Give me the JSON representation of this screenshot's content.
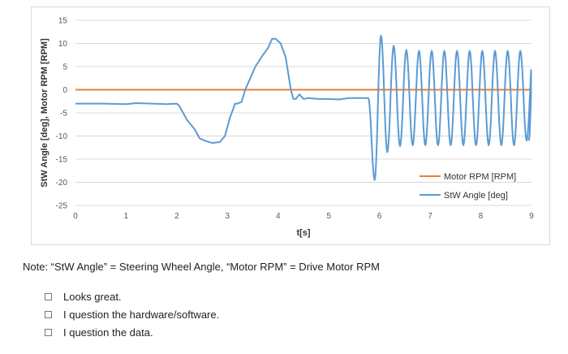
{
  "chart_data": {
    "type": "line",
    "title": "",
    "xlabel": "t[s]",
    "ylabel": "StW Angle [deg], Motor RPM [RPM]",
    "xlim": [
      0,
      9
    ],
    "ylim": [
      -25,
      15
    ],
    "x_ticks": [
      "0",
      "1",
      "2",
      "3",
      "4",
      "5",
      "6",
      "7",
      "8",
      "9"
    ],
    "y_ticks": [
      "15",
      "10",
      "5",
      "0",
      "-5",
      "-10",
      "-15",
      "-20",
      "-25"
    ],
    "grid": "horizontal",
    "legend_position": "bottom-right",
    "series": [
      {
        "name": "Motor RPM [RPM]",
        "color": "#ed7d31",
        "x": [
          0,
          9
        ],
        "y": [
          0,
          0
        ]
      },
      {
        "name": "StW Angle [deg]",
        "color": "#5b9bd5",
        "x": [
          0,
          0.5,
          1.0,
          1.2,
          1.5,
          1.8,
          2.0,
          2.05,
          2.1,
          2.2,
          2.35,
          2.45,
          2.55,
          2.7,
          2.85,
          2.95,
          3.05,
          3.15,
          3.2,
          3.28,
          3.35,
          3.45,
          3.55,
          3.7,
          3.8,
          3.88,
          3.95,
          4.05,
          4.15,
          4.25,
          4.3,
          4.35,
          4.42,
          4.5,
          4.6,
          4.8,
          5.0,
          5.2,
          5.4,
          5.6,
          5.78
        ],
        "y": [
          -3,
          -3,
          -3.1,
          -2.9,
          -3,
          -3.1,
          -3,
          -3.5,
          -4.5,
          -6.5,
          -8.5,
          -10.5,
          -11,
          -11.5,
          -11.3,
          -10,
          -6,
          -3,
          -3,
          -2.6,
          0,
          2.5,
          5,
          7.5,
          9,
          11,
          11,
          10,
          7,
          0,
          -2,
          -2,
          -1,
          -2,
          -1.8,
          -2,
          -2,
          -2.1,
          -1.8,
          -1.8,
          -1.8
        ],
        "oscillation": {
          "x_start": 5.78,
          "x_end": 8.95,
          "period": 0.25,
          "peaks": [
            11.7,
            9.5,
            8.6,
            8.4,
            8.4,
            8.4,
            8.4,
            8.4,
            8.4,
            8.4,
            8.4,
            8.4,
            8.2
          ],
          "troughs": [
            -19.5,
            -13.5,
            -12.2,
            -12,
            -12,
            -12,
            -12,
            -12,
            -12,
            -12,
            -12,
            -12,
            -11
          ]
        }
      }
    ]
  },
  "note": "Note: “StW Angle” = Steering Wheel Angle, “Motor RPM” = Drive Motor RPM",
  "options": [
    "Looks great.",
    "I question the hardware/software.",
    "I question the data."
  ]
}
